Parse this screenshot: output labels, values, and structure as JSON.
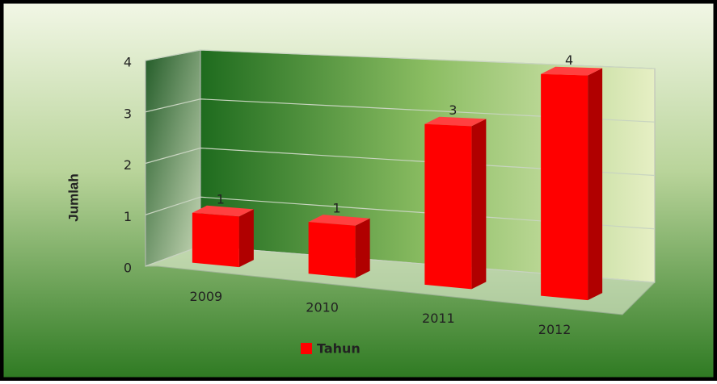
{
  "chart_data": {
    "type": "bar3d",
    "y_label": "Jumlah",
    "categories": [
      "2009",
      "2010",
      "2011",
      "2012"
    ],
    "series": [
      {
        "name": "Tahun",
        "color": "#ff0000",
        "values": [
          1,
          1,
          3,
          4
        ]
      }
    ],
    "ylim": [
      0,
      4
    ],
    "yticks": [
      0,
      1,
      2,
      3,
      4
    ],
    "grid": true,
    "legend": "bottom"
  }
}
